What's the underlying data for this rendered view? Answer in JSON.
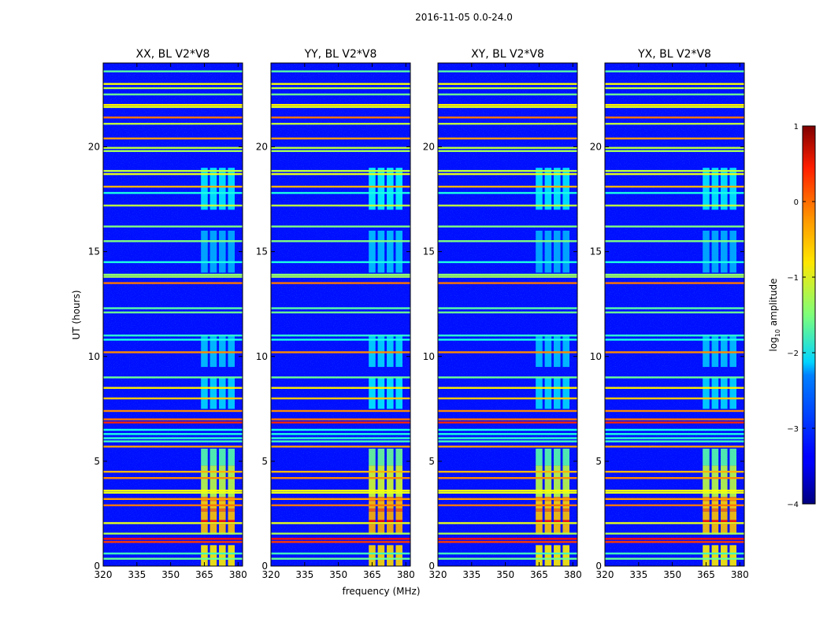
{
  "chart_data": {
    "type": "heatmap",
    "suptitle": "2016-11-05 0.0-24.0",
    "xlabel": "frequency (MHz)",
    "ylabel": "UT (hours)",
    "xlim": [
      320,
      382
    ],
    "ylim": [
      0,
      24
    ],
    "xticks": [
      320,
      335,
      350,
      365,
      380
    ],
    "yticks": [
      0,
      5,
      10,
      15,
      20
    ],
    "colormap": "jet",
    "colorbar": {
      "label": "log10 amplitude",
      "label_base": "log",
      "label_sub": "10",
      "label_tail": " amplitude",
      "range": [
        -4,
        1
      ],
      "ticks": [
        1,
        0,
        -1,
        -2,
        -3,
        -4
      ],
      "tick_labels": [
        "1",
        "0",
        "−1",
        "−2",
        "−3",
        "−4"
      ]
    },
    "panels": [
      {
        "title": "XX, BL V2*V8"
      },
      {
        "title": "YY, BL V2*V8"
      },
      {
        "title": "XY, BL V2*V8"
      },
      {
        "title": "YX, BL V2*V8"
      }
    ],
    "background_level": -3.3,
    "rfi_lines": [
      {
        "t": 0.35,
        "v": -1.6
      },
      {
        "t": 0.6,
        "v": -1.8
      },
      {
        "t": 1.15,
        "v": 0.1
      },
      {
        "t": 1.3,
        "v": 0.3
      },
      {
        "t": 1.55,
        "v": -1.3
      },
      {
        "t": 2.05,
        "v": -1.0
      },
      {
        "t": 2.9,
        "v": -0.2
      },
      {
        "t": 3.2,
        "v": -0.4
      },
      {
        "t": 3.5,
        "v": -1.0
      },
      {
        "t": 3.6,
        "v": -0.9
      },
      {
        "t": 4.2,
        "v": -0.3
      },
      {
        "t": 4.5,
        "v": -0.5
      },
      {
        "t": 5.7,
        "v": -0.4
      },
      {
        "t": 5.95,
        "v": -1.8
      },
      {
        "t": 6.1,
        "v": -1.9
      },
      {
        "t": 6.3,
        "v": -2.0
      },
      {
        "t": 6.5,
        "v": -2.0
      },
      {
        "t": 6.85,
        "v": 0.2
      },
      {
        "t": 7.0,
        "v": -0.2
      },
      {
        "t": 7.4,
        "v": -0.3
      },
      {
        "t": 8.0,
        "v": -0.6
      },
      {
        "t": 8.5,
        "v": -0.8
      },
      {
        "t": 9.0,
        "v": -1.6
      },
      {
        "t": 10.2,
        "v": -0.3
      },
      {
        "t": 10.8,
        "v": -2.0
      },
      {
        "t": 11.0,
        "v": -1.9
      },
      {
        "t": 12.1,
        "v": -1.6
      },
      {
        "t": 12.3,
        "v": -1.7
      },
      {
        "t": 13.5,
        "v": -0.2
      },
      {
        "t": 13.8,
        "v": -1.3
      },
      {
        "t": 13.9,
        "v": -1.4
      },
      {
        "t": 14.5,
        "v": -2.0
      },
      {
        "t": 15.5,
        "v": -1.5
      },
      {
        "t": 16.2,
        "v": -1.5
      },
      {
        "t": 17.2,
        "v": -1.2
      },
      {
        "t": 17.8,
        "v": -2.0
      },
      {
        "t": 18.1,
        "v": -0.5
      },
      {
        "t": 18.7,
        "v": -1.0
      },
      {
        "t": 18.85,
        "v": -1.2
      },
      {
        "t": 19.8,
        "v": -1.3
      },
      {
        "t": 19.95,
        "v": -1.2
      },
      {
        "t": 20.4,
        "v": -0.4
      },
      {
        "t": 21.1,
        "v": -1.2
      },
      {
        "t": 21.4,
        "v": -0.2
      },
      {
        "t": 21.9,
        "v": -1.0
      },
      {
        "t": 22.0,
        "v": -0.8
      },
      {
        "t": 22.5,
        "v": -1.6
      },
      {
        "t": 22.8,
        "v": -1.2
      },
      {
        "t": 23.0,
        "v": -0.9
      },
      {
        "t": 23.6,
        "v": -1.7
      }
    ],
    "band_strips": [
      {
        "f0": 363.5,
        "f1": 366.5
      },
      {
        "f0": 367.5,
        "f1": 370.5
      },
      {
        "f0": 371.5,
        "f1": 374.5
      },
      {
        "f0": 375.5,
        "f1": 378.5
      }
    ],
    "band_levels": [
      {
        "t0": 0.0,
        "t1": 1.0,
        "v": -0.8
      },
      {
        "t0": 1.5,
        "t1": 2.0,
        "v": -0.6
      },
      {
        "t0": 2.0,
        "t1": 2.2,
        "v": 0.3
      },
      {
        "t0": 2.2,
        "t1": 2.6,
        "v": -0.6
      },
      {
        "t0": 2.6,
        "t1": 2.75,
        "v": -0.2
      },
      {
        "t0": 2.75,
        "t1": 3.1,
        "v": -0.7
      },
      {
        "t0": 3.1,
        "t1": 3.3,
        "v": -0.3
      },
      {
        "t0": 3.3,
        "t1": 4.8,
        "v": -1.2
      },
      {
        "t0": 4.8,
        "t1": 5.6,
        "v": -1.7
      },
      {
        "t0": 7.5,
        "t1": 9.0,
        "v": -2.3
      },
      {
        "t0": 9.5,
        "t1": 11.0,
        "v": -2.4
      },
      {
        "t0": 14.0,
        "t1": 16.0,
        "v": -2.5
      },
      {
        "t0": 17.0,
        "t1": 19.0,
        "v": -2.2
      }
    ]
  }
}
